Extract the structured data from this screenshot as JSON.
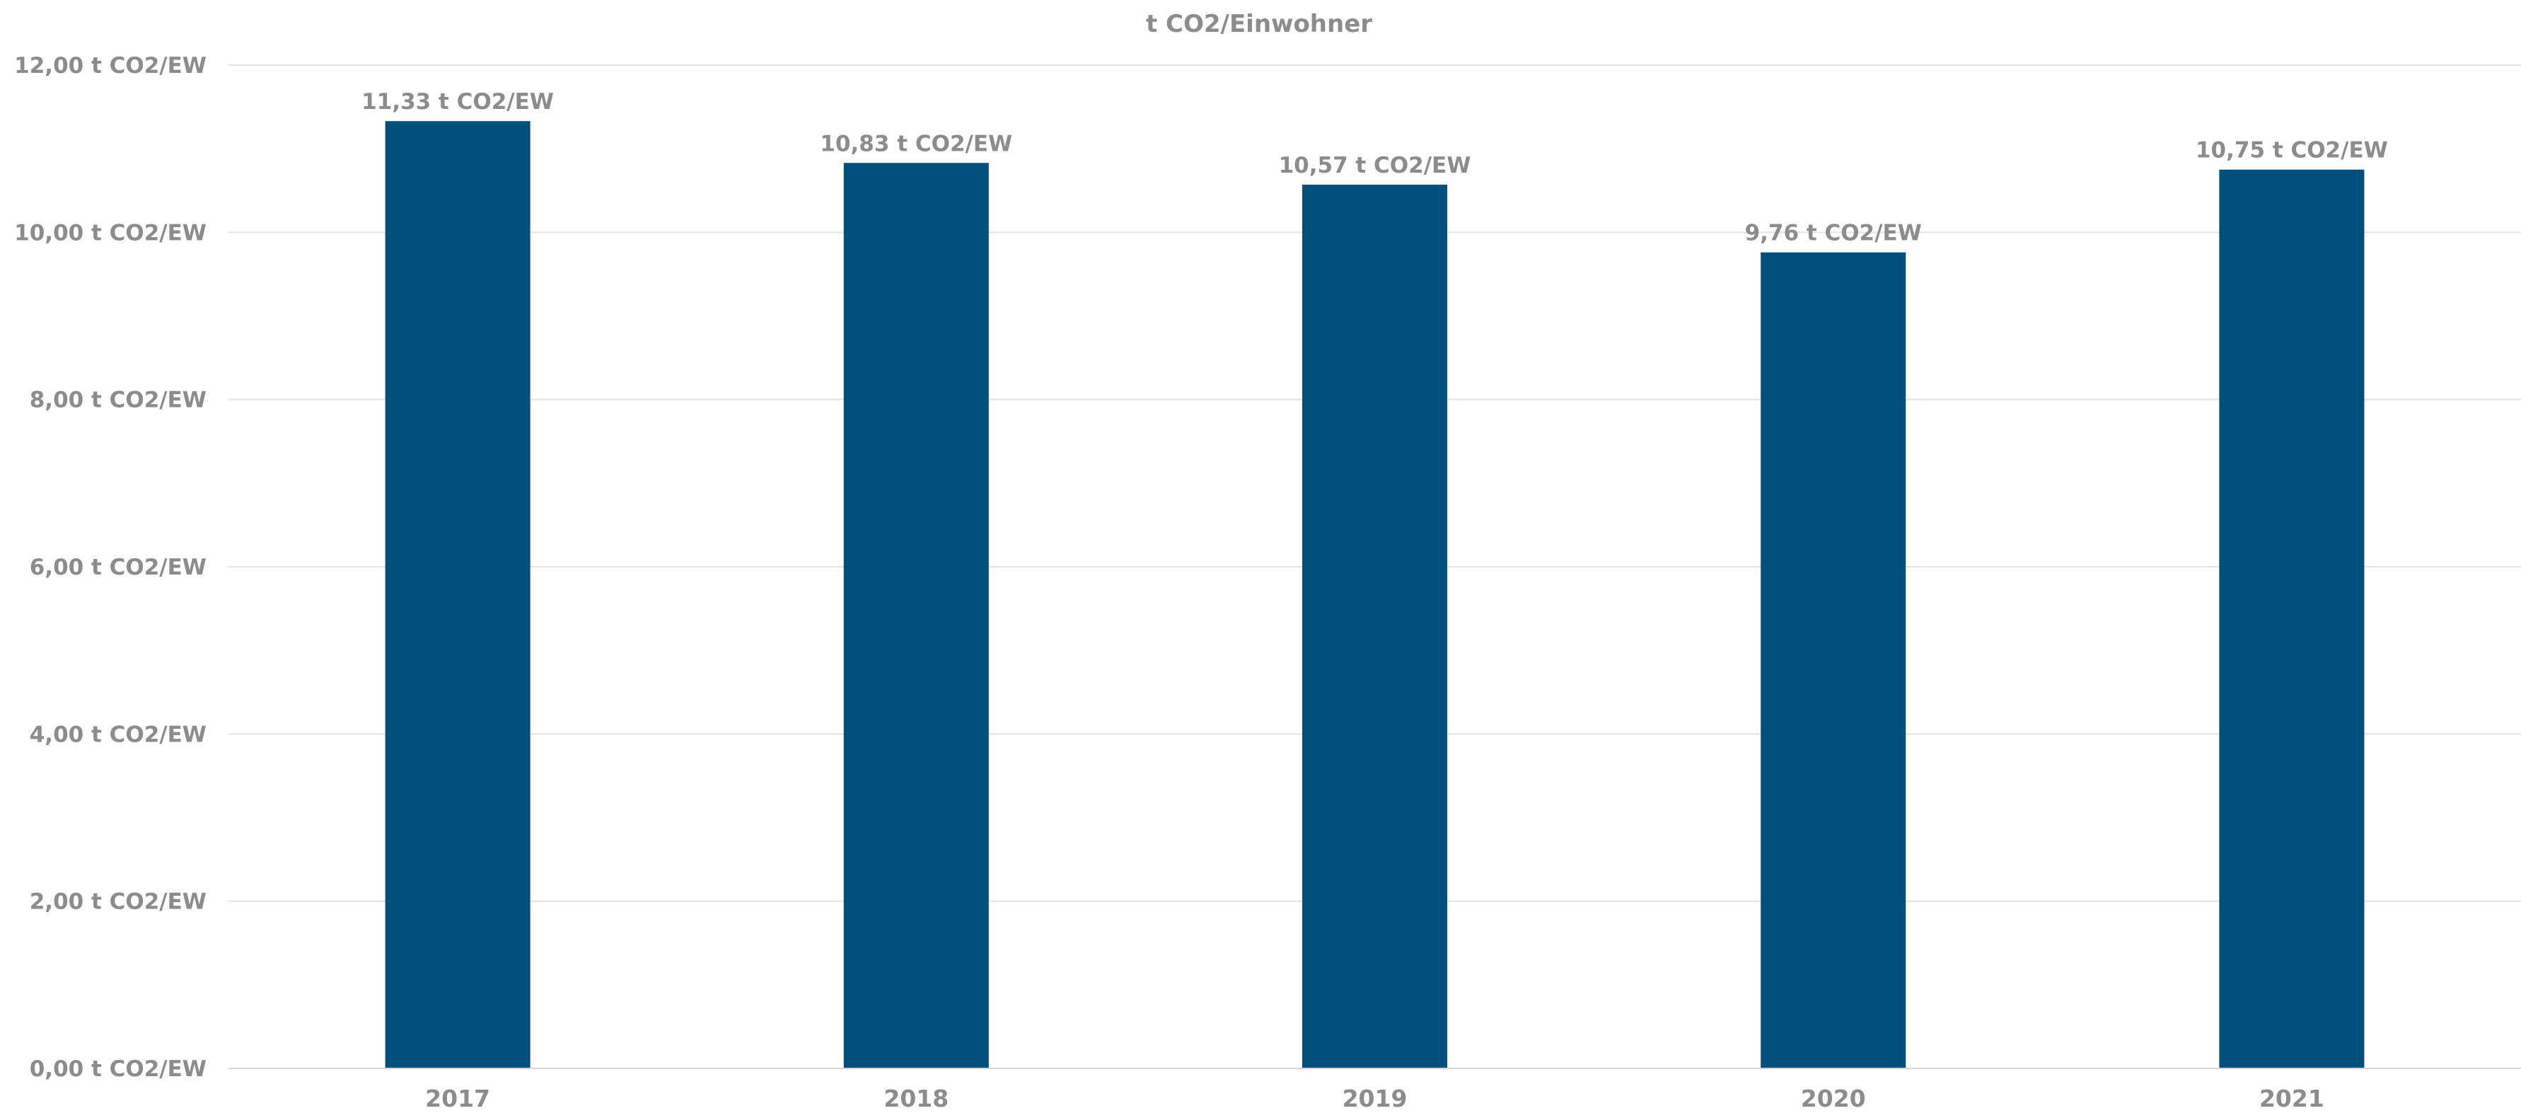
{
  "chart_data": {
    "type": "bar",
    "title": "t CO2/Einwohner",
    "categories": [
      "2017",
      "2018",
      "2019",
      "2020",
      "2021"
    ],
    "series": [
      {
        "values": [
          11.33,
          10.83,
          10.57,
          9.76,
          10.75
        ]
      }
    ],
    "data_labels": [
      "11,33 t CO2/EW",
      "10,83 t CO2/EW",
      "10,57 t CO2/EW",
      "9,76 t CO2/EW",
      "10,75 t CO2/EW"
    ],
    "y_ticks": [
      {
        "value": 0,
        "label": "0,00 t CO2/EW"
      },
      {
        "value": 2,
        "label": "2,00 t CO2/EW"
      },
      {
        "value": 4,
        "label": "4,00 t CO2/EW"
      },
      {
        "value": 6,
        "label": "6,00 t CO2/EW"
      },
      {
        "value": 8,
        "label": "8,00 t CO2/EW"
      },
      {
        "value": 10,
        "label": "10,00 t CO2/EW"
      },
      {
        "value": 12,
        "label": "12,00 t CO2/EW"
      }
    ],
    "ylim": [
      0,
      12
    ],
    "grid": true,
    "legend": "none",
    "colors": {
      "bar": "#00507d",
      "text": "#8c8c8c",
      "grid": "#e3e3e3",
      "axis": "#d6d6d6"
    }
  }
}
